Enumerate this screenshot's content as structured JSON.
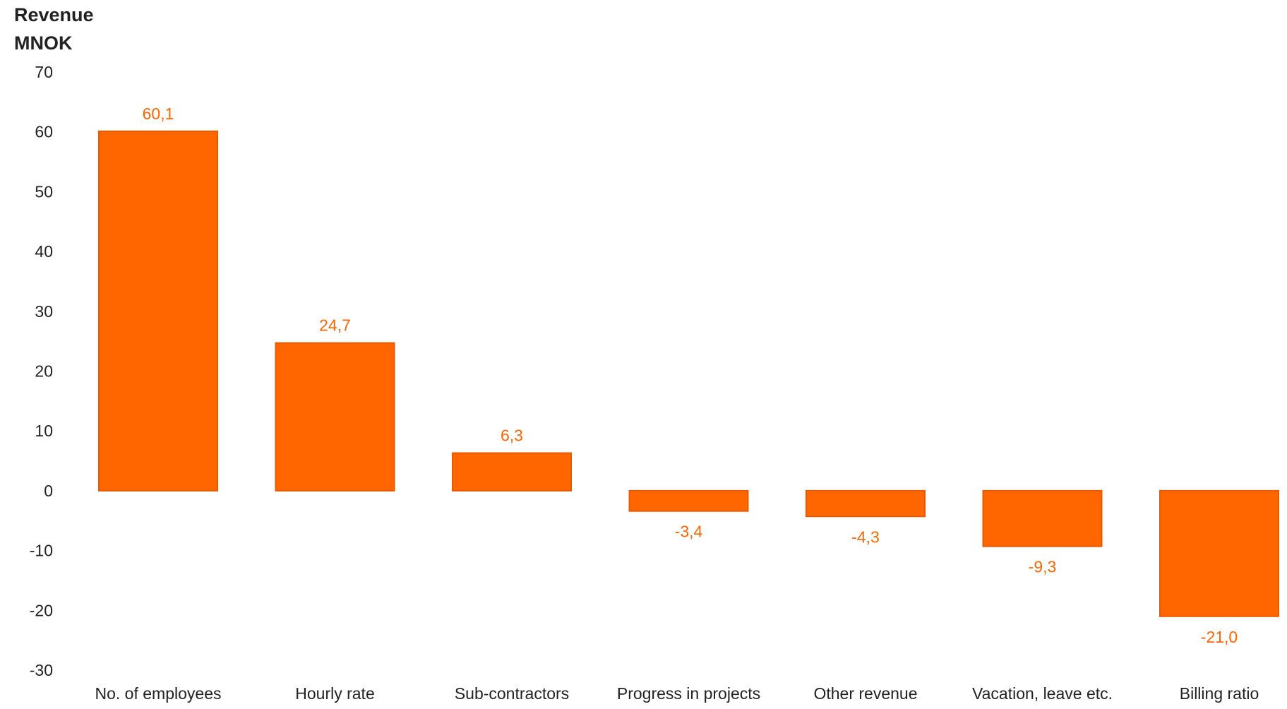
{
  "chart_data": {
    "type": "bar",
    "ylabel_lines": [
      "Revenue",
      "MNOK"
    ],
    "categories": [
      "No. of employees",
      "Hourly rate",
      "Sub-contractors",
      "Progress in projects",
      "Other revenue",
      "Vacation, leave etc.",
      "Billing ratio"
    ],
    "values": [
      60.1,
      24.7,
      6.3,
      -3.4,
      -4.3,
      -9.3,
      -21.0
    ],
    "value_labels": [
      "60,1",
      "24,7",
      "6,3",
      "-3,4",
      "-4,3",
      "-9,3",
      "-21,0"
    ],
    "ylim": [
      -30,
      70
    ],
    "yticks": [
      70,
      60,
      50,
      40,
      30,
      20,
      10,
      0,
      -10,
      -20,
      -30
    ],
    "ytick_labels": [
      "70",
      "60",
      "50",
      "40",
      "30",
      "20",
      "10",
      "0",
      "-10",
      "-20",
      "-30"
    ],
    "grid": false,
    "bar_color": "#FF6600",
    "bar_edge_color": "#E85A00",
    "label_color": "#FF6600"
  }
}
